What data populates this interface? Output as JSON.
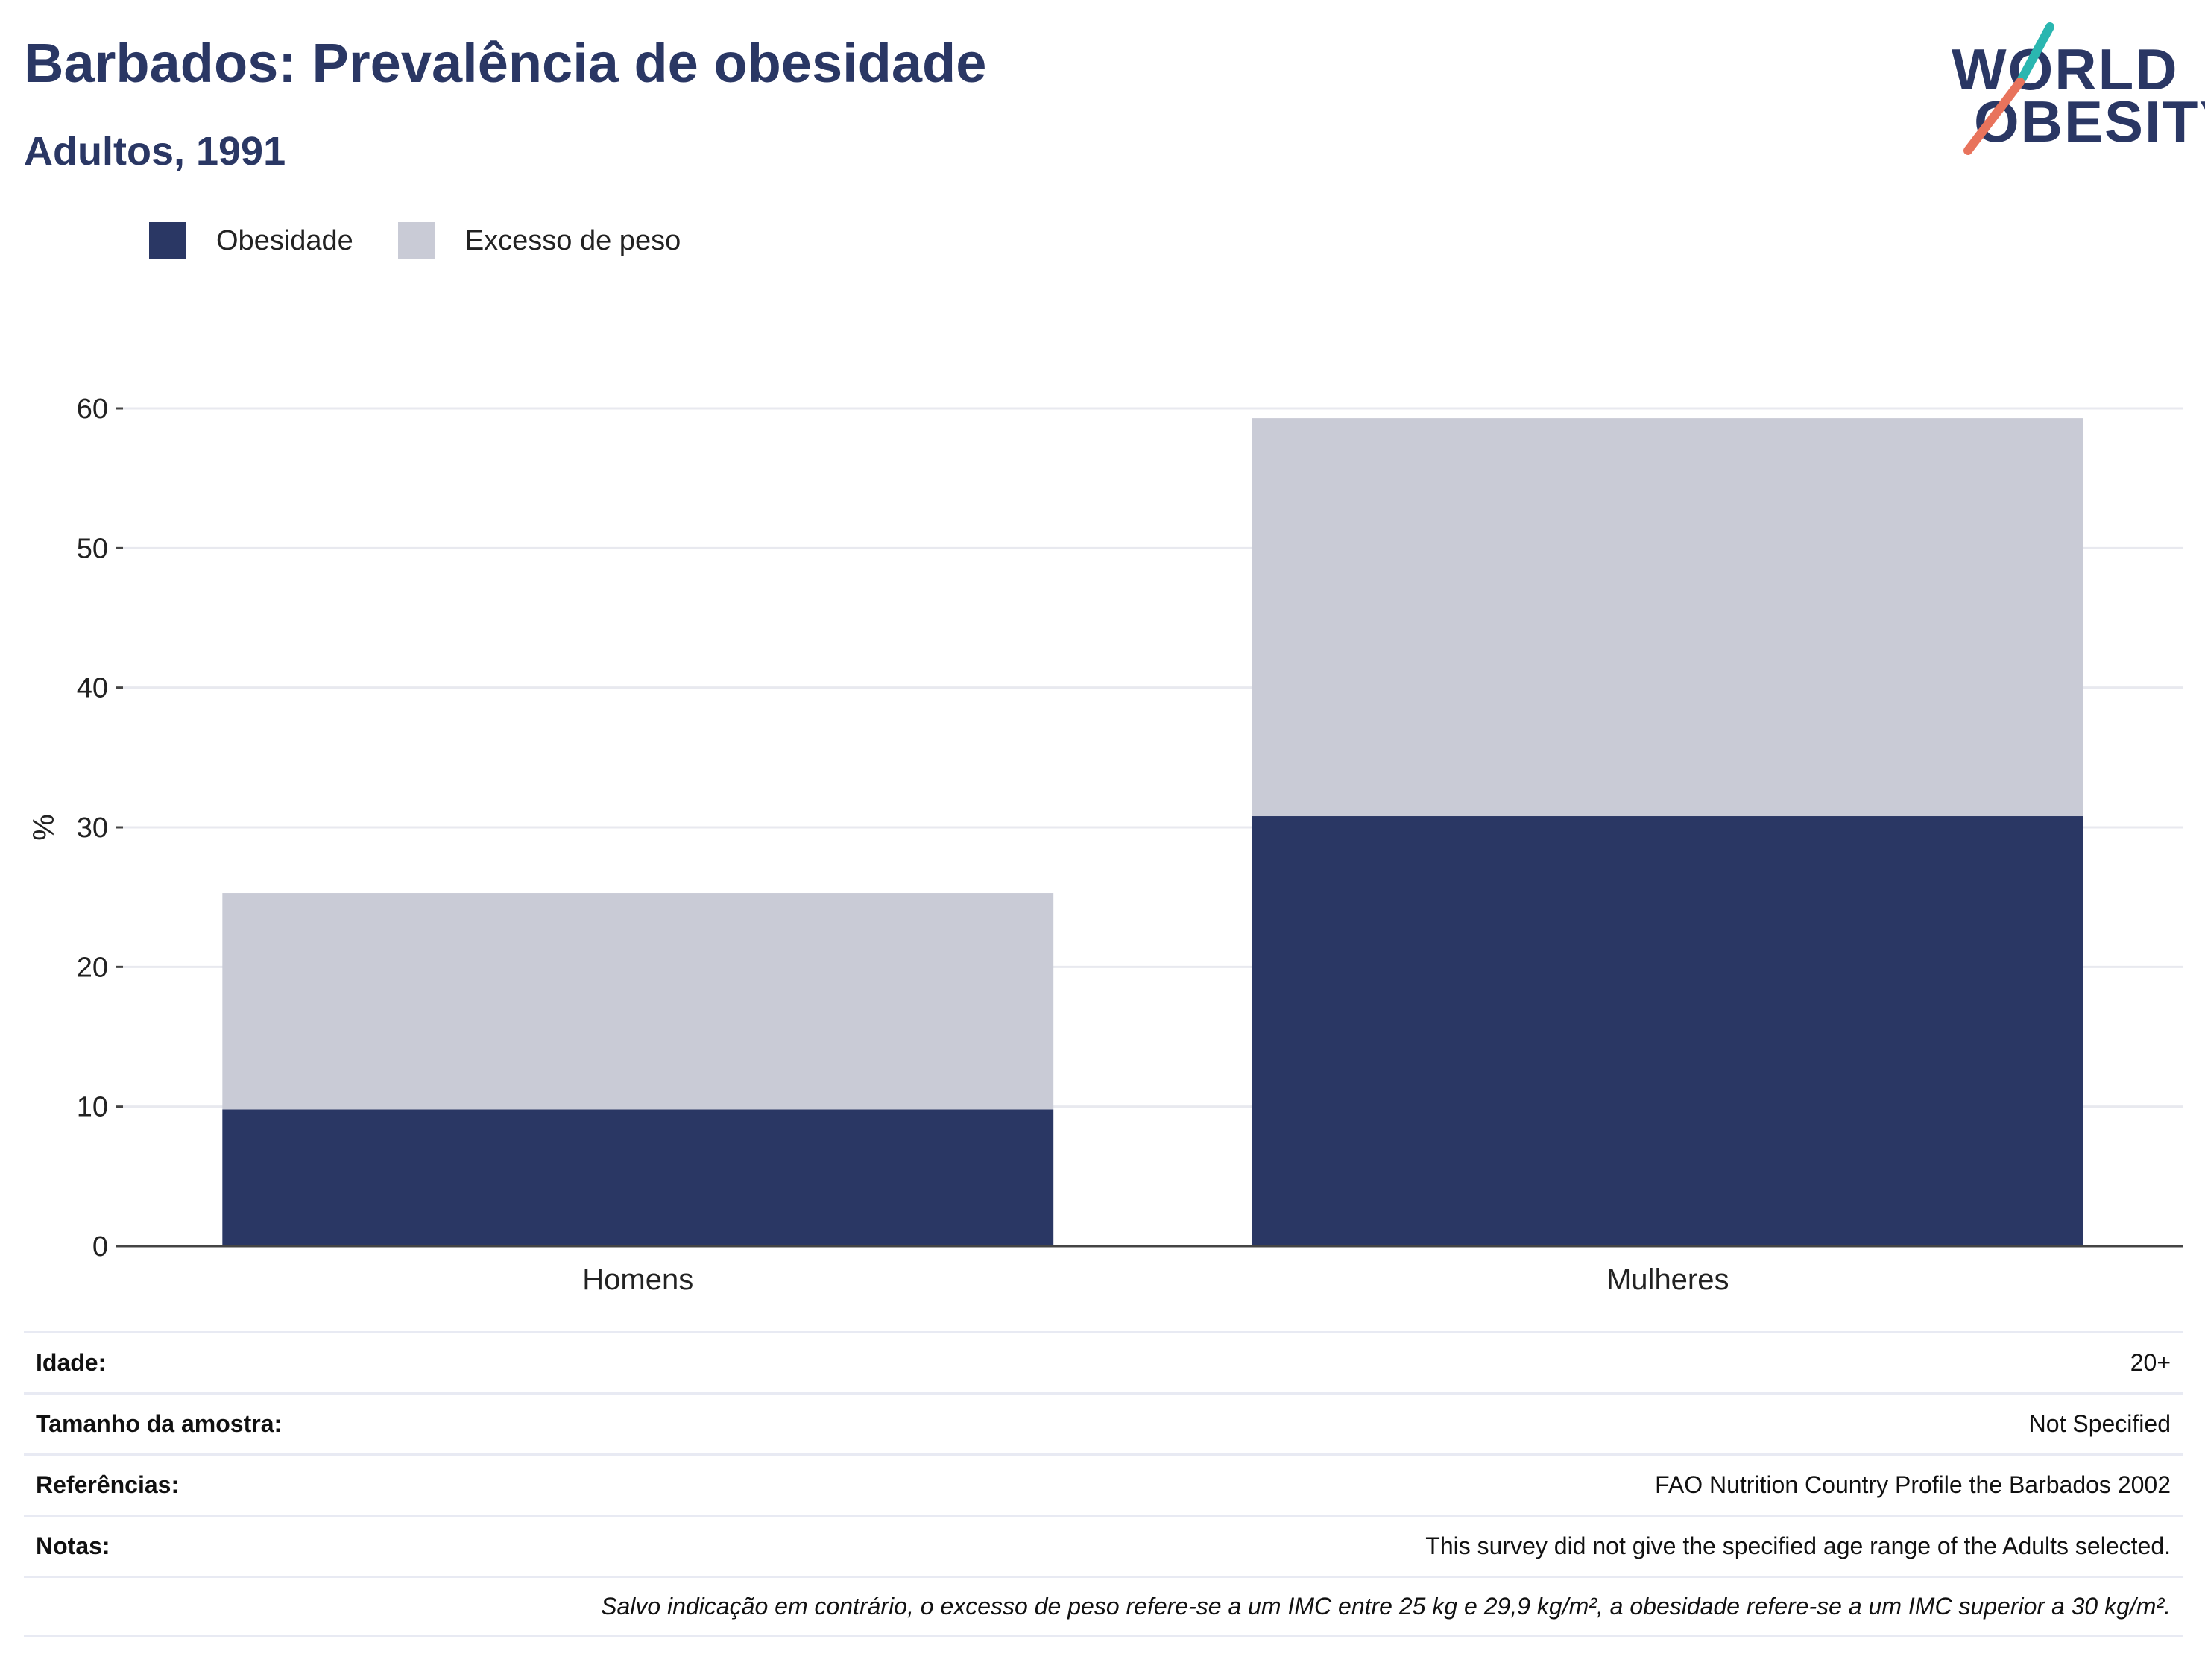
{
  "header": {
    "title": "Barbados: Prevalência de obesidade",
    "subtitle": "Adultos, 1991"
  },
  "logo": {
    "line1": "WORLD",
    "line2": "OBESITY",
    "accent_teal": "#2ab6b0",
    "accent_coral": "#e8735c"
  },
  "legend": [
    {
      "label": "Obesidade",
      "color": "#2a3764"
    },
    {
      "label": "Excesso de peso",
      "color": "#c9cbd6"
    }
  ],
  "chart_data": {
    "type": "bar",
    "stacked": true,
    "categories": [
      "Homens",
      "Mulheres"
    ],
    "series": [
      {
        "name": "Obesidade",
        "color": "#2a3764",
        "values": [
          9.8,
          30.8
        ]
      },
      {
        "name": "Excesso de peso",
        "color": "#c9cbd6",
        "values": [
          15.5,
          28.5
        ]
      }
    ],
    "ylabel": "%",
    "ylim": [
      0,
      60
    ],
    "yticks": [
      0,
      10,
      20,
      30,
      40,
      50,
      60
    ],
    "grid": true,
    "legend_position": "top-left"
  },
  "info": [
    {
      "key": "Idade:",
      "value": "20+"
    },
    {
      "key": "Tamanho da amostra:",
      "value": "Not Specified"
    },
    {
      "key": "Referências:",
      "value": "FAO Nutrition Country Profile the Barbados 2002"
    },
    {
      "key": "Notas:",
      "value": "This survey did not give the specified age range of the Adults selected."
    }
  ],
  "footnote": "Salvo indicação em contrário, o excesso de peso refere-se a um IMC entre 25 kg e 29,9 kg/m², a obesidade refere-se a um IMC superior a 30 kg/m²."
}
